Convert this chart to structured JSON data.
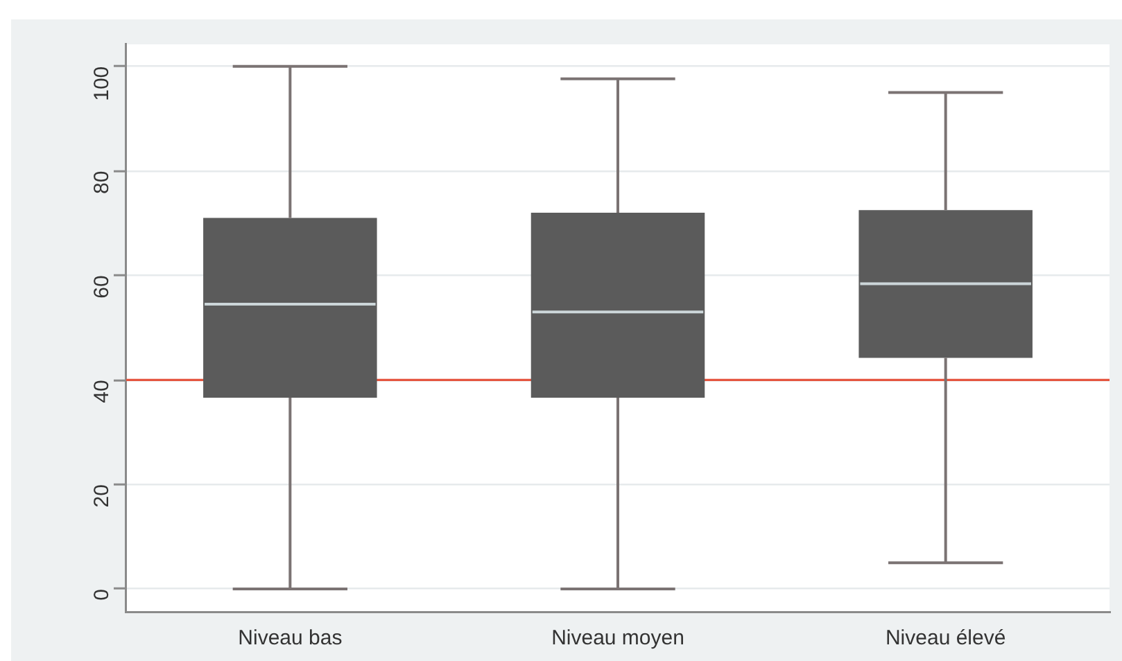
{
  "chart_data": {
    "type": "box",
    "categories": [
      "Niveau bas",
      "Niveau moyen",
      "Niveau élevé"
    ],
    "boxes": [
      {
        "low": 0,
        "q1": 36.6,
        "median": 54.5,
        "q3": 71,
        "high": 100
      },
      {
        "low": 0,
        "q1": 36.6,
        "median": 53,
        "q3": 72,
        "high": 97.6
      },
      {
        "low": 5,
        "q1": 44.2,
        "median": 58.4,
        "q3": 72.5,
        "high": 95
      }
    ],
    "color": "#5b5b5b",
    "ylim": [
      -4.5,
      104.2
    ],
    "yticks": [
      0,
      20,
      40,
      60,
      80,
      100
    ],
    "grid": "y",
    "ref_lines": [
      {
        "axis": "y",
        "value": 40,
        "color": "#e5553f"
      }
    ]
  }
}
